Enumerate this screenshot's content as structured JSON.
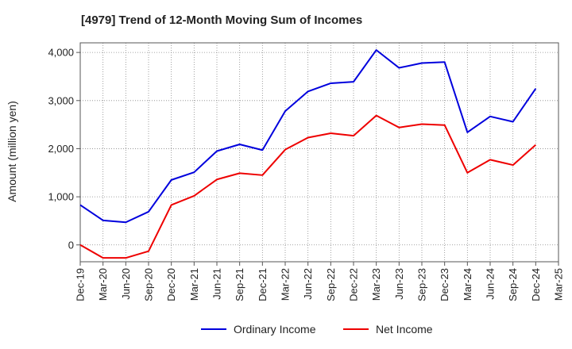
{
  "chart_data": {
    "type": "line",
    "title": "[4979]  Trend of 12-Month Moving Sum of Incomes",
    "ylabel": "Amount (million yen)",
    "xlabel": "",
    "ylim": [
      -350,
      4200
    ],
    "yticks": [
      0,
      1000,
      2000,
      3000,
      4000
    ],
    "ytick_labels": [
      "0",
      "1,000",
      "2,000",
      "3,000",
      "4,000"
    ],
    "categories": [
      "Dec-19",
      "Mar-20",
      "Jun-20",
      "Sep-20",
      "Dec-20",
      "Mar-21",
      "Jun-21",
      "Sep-21",
      "Dec-21",
      "Mar-22",
      "Jun-22",
      "Sep-22",
      "Dec-22",
      "Mar-23",
      "Jun-23",
      "Sep-23",
      "Dec-23",
      "Mar-24",
      "Jun-24",
      "Sep-24",
      "Dec-24",
      "Mar-25"
    ],
    "grid": true,
    "legend_position": "bottom",
    "series": [
      {
        "name": "Ordinary Income",
        "color": "#0000dd",
        "values": [
          830,
          510,
          470,
          690,
          1350,
          1510,
          1950,
          2090,
          1970,
          2780,
          3190,
          3360,
          3390,
          4050,
          3680,
          3780,
          3800,
          2340,
          2670,
          2560,
          3250,
          null
        ]
      },
      {
        "name": "Net Income",
        "color": "#ee0000",
        "values": [
          0,
          -270,
          -270,
          -130,
          830,
          1020,
          1360,
          1490,
          1450,
          1980,
          2230,
          2320,
          2270,
          2690,
          2440,
          2510,
          2490,
          1500,
          1770,
          1660,
          2080,
          null
        ]
      }
    ]
  }
}
